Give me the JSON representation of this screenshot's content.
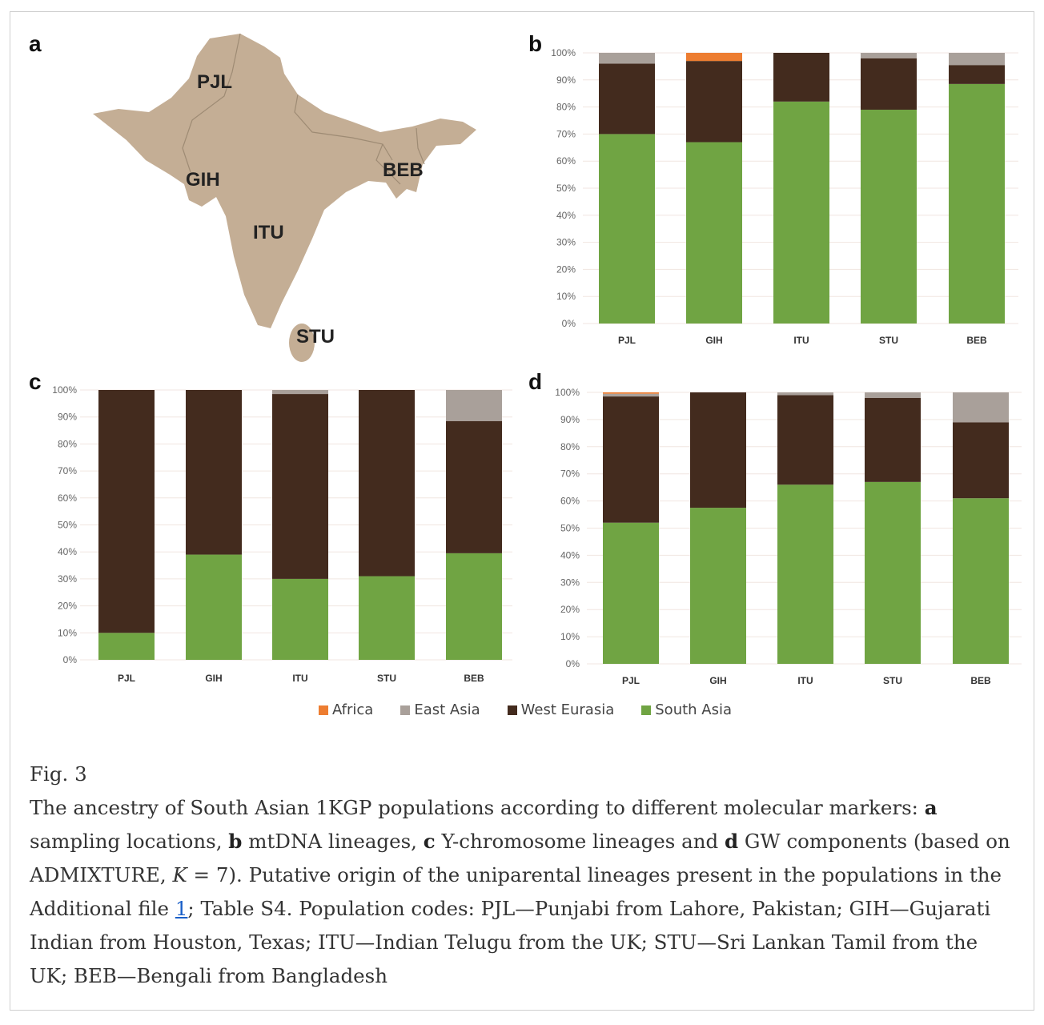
{
  "panels": {
    "a": "a",
    "b": "b",
    "c": "c",
    "d": "d"
  },
  "map": {
    "labels": [
      "PJL",
      "GIH",
      "ITU",
      "STU",
      "BEB"
    ],
    "land_color": "#c4ae95",
    "border_color": "#9e8b74"
  },
  "colors": {
    "Africa": "#ed7d31",
    "East Asia": "#a9a09a",
    "West Eurasia": "#432b1e",
    "South Asia": "#70a443"
  },
  "legend": [
    {
      "label": "Africa",
      "color": "#ed7d31"
    },
    {
      "label": "East Asia",
      "color": "#a9a09a"
    },
    {
      "label": "West Eurasia",
      "color": "#432b1e"
    },
    {
      "label": "South Asia",
      "color": "#70a443"
    }
  ],
  "chart_data": [
    {
      "panel": "b",
      "type": "bar",
      "stacked": true,
      "title": "mtDNA lineages",
      "categories": [
        "PJL",
        "GIH",
        "ITU",
        "STU",
        "BEB"
      ],
      "yticks": [
        "0%",
        "10%",
        "20%",
        "30%",
        "40%",
        "50%",
        "60%",
        "70%",
        "80%",
        "90%",
        "100%"
      ],
      "ylim": [
        0,
        100
      ],
      "series": [
        {
          "name": "South Asia",
          "values": [
            70,
            67,
            82,
            79,
            88.5
          ]
        },
        {
          "name": "West Eurasia",
          "values": [
            26,
            30,
            18,
            19,
            7
          ]
        },
        {
          "name": "East Asia",
          "values": [
            4,
            0,
            0,
            2,
            4.5
          ]
        },
        {
          "name": "Africa",
          "values": [
            0,
            3,
            0,
            0,
            0
          ]
        }
      ]
    },
    {
      "panel": "c",
      "type": "bar",
      "stacked": true,
      "title": "Y-chromosome lineages",
      "categories": [
        "PJL",
        "GIH",
        "ITU",
        "STU",
        "BEB"
      ],
      "yticks": [
        "0%",
        "10%",
        "20%",
        "30%",
        "40%",
        "50%",
        "60%",
        "70%",
        "80%",
        "90%",
        "100%"
      ],
      "ylim": [
        0,
        100
      ],
      "series": [
        {
          "name": "South Asia",
          "values": [
            10,
            39,
            30,
            31,
            39.5
          ]
        },
        {
          "name": "West Eurasia",
          "values": [
            90,
            61,
            68.5,
            69,
            49
          ]
        },
        {
          "name": "East Asia",
          "values": [
            0,
            0,
            1.5,
            0,
            11.5
          ]
        },
        {
          "name": "Africa",
          "values": [
            0,
            0,
            0,
            0,
            0
          ]
        }
      ]
    },
    {
      "panel": "d",
      "type": "bar",
      "stacked": true,
      "title": "GW components",
      "categories": [
        "PJL",
        "GIH",
        "ITU",
        "STU",
        "BEB"
      ],
      "yticks": [
        "0%",
        "10%",
        "20%",
        "30%",
        "40%",
        "50%",
        "60%",
        "70%",
        "80%",
        "90%",
        "100%"
      ],
      "ylim": [
        0,
        100
      ],
      "series": [
        {
          "name": "South Asia",
          "values": [
            52,
            57.5,
            66,
            67,
            61
          ]
        },
        {
          "name": "West Eurasia",
          "values": [
            46.5,
            42.5,
            33,
            31,
            28
          ]
        },
        {
          "name": "East Asia",
          "values": [
            1,
            0,
            1,
            2,
            11
          ]
        },
        {
          "name": "Africa",
          "values": [
            0.5,
            0,
            0,
            0,
            0
          ]
        }
      ]
    }
  ],
  "caption": {
    "fig": "Fig. 3",
    "t1": "The ancestry of South Asian 1KGP populations according to different molecular markers: ",
    "a": "a",
    "t2": " sampling locations, ",
    "b": "b",
    "t3": " mtDNA lineages, ",
    "c": "c",
    "t4": " Y-chromosome lineages and ",
    "d": "d",
    "t5": " GW components (based on ADMIXTURE, ",
    "k": "K",
    "t6": " = 7). Putative origin of the uniparental lineages present in the populations in the Additional file ",
    "link": "1",
    "t7": "; Table S4. Population codes: PJL—Punjabi from Lahore, Pakistan; GIH—Gujarati Indian from Houston, Texas; ITU—Indian Telugu from the UK; STU—Sri Lankan Tamil from the UK; BEB—Bengali from Bangladesh"
  }
}
